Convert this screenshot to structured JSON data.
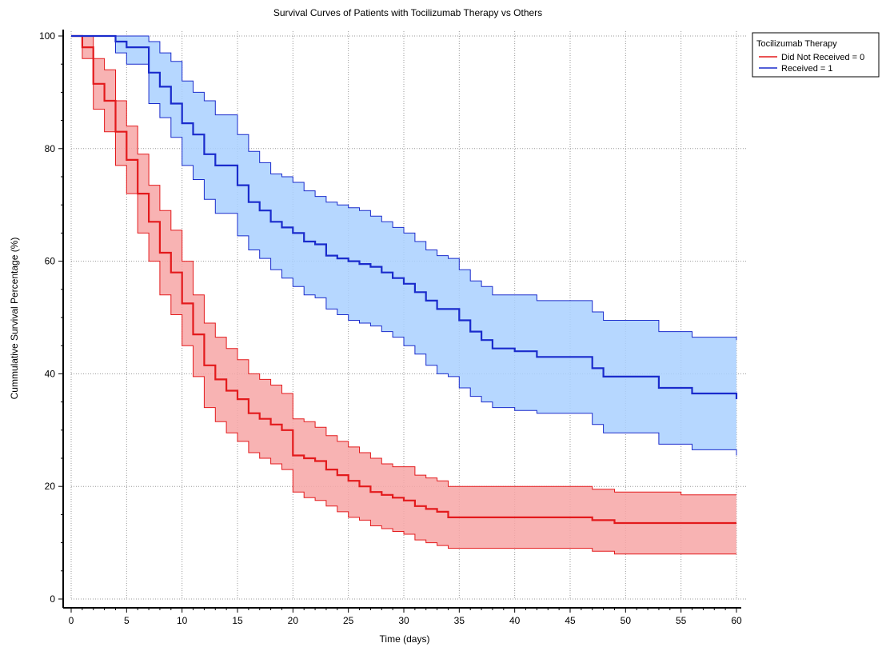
{
  "chart_data": {
    "type": "line",
    "title": "Survival Curves of Patients with Tocilizumab Therapy vs Others",
    "xlabel": "Time (days)",
    "ylabel": "Cummulative Survival Percentage (%)",
    "xlim": [
      0,
      60
    ],
    "ylim": [
      0,
      100
    ],
    "xticks": [
      0,
      5,
      10,
      15,
      20,
      25,
      30,
      35,
      40,
      45,
      50,
      55,
      60
    ],
    "yticks": [
      0,
      20,
      40,
      60,
      80,
      100
    ],
    "grid": true,
    "legend": {
      "title": "Tocilizumab Therapy",
      "placement": "top-right"
    },
    "series": [
      {
        "name": "Did Not Received = 0",
        "color": "#e31a1c",
        "band_color": "#f7a6a6",
        "x": [
          0,
          1,
          2,
          3,
          4,
          5,
          6,
          7,
          8,
          9,
          10,
          11,
          12,
          13,
          14,
          15,
          16,
          17,
          18,
          19,
          20,
          21,
          22,
          23,
          24,
          25,
          26,
          27,
          28,
          29,
          30,
          31,
          32,
          33,
          34,
          35,
          40,
          45,
          47,
          49,
          55,
          60
        ],
        "y": [
          100,
          98,
          91.5,
          88.5,
          83,
          78,
          72,
          67,
          61.5,
          58,
          52.5,
          47,
          41.5,
          39,
          37,
          35.5,
          33,
          32,
          31,
          30,
          25.5,
          25,
          24.5,
          23,
          22,
          21,
          20,
          19,
          18.5,
          18,
          17.5,
          16.5,
          16,
          15.5,
          14.5,
          14.5,
          14.5,
          14.5,
          14,
          13.5,
          13.5,
          13.5
        ],
        "lower": [
          100,
          96,
          87,
          83,
          77,
          72,
          65,
          60,
          54,
          50.5,
          45,
          39.5,
          34,
          31.5,
          29.5,
          28,
          26,
          25,
          24,
          23,
          19,
          18,
          17.5,
          16.5,
          15.5,
          14.5,
          14,
          13,
          12.5,
          12,
          11.5,
          10.5,
          10,
          9.5,
          9,
          9,
          9,
          9,
          8.5,
          8,
          8,
          8
        ],
        "upper": [
          100,
          100,
          96,
          94,
          88.5,
          84,
          79,
          73.5,
          69,
          65.5,
          60,
          54,
          49,
          46.5,
          44.5,
          42.5,
          40,
          39,
          38,
          36.5,
          32,
          31.5,
          30.5,
          29,
          28,
          27,
          26,
          25,
          24,
          23.5,
          23.5,
          22,
          21.5,
          21,
          20,
          20,
          20,
          20,
          19.5,
          19,
          18.5,
          18.5
        ]
      },
      {
        "name": "Received = 1",
        "color": "#1a2bcc",
        "band_color": "#a9d0ff",
        "x": [
          0,
          4,
          5,
          7,
          8,
          9,
          10,
          11,
          12,
          13,
          15,
          16,
          17,
          18,
          19,
          20,
          21,
          22,
          23,
          24,
          25,
          26,
          27,
          28,
          29,
          30,
          31,
          32,
          33,
          34,
          35,
          36,
          37,
          38,
          40,
          42,
          45,
          47,
          48,
          50,
          53,
          56,
          60
        ],
        "y": [
          100,
          99,
          98,
          93.5,
          91,
          88,
          84.5,
          82.5,
          79,
          77,
          73.5,
          70.5,
          69,
          67,
          66,
          65,
          63.5,
          63,
          61,
          60.5,
          60,
          59.5,
          59,
          58,
          57,
          56,
          54.5,
          53,
          51.5,
          51.5,
          49.5,
          47.5,
          46,
          44.5,
          44,
          43,
          43,
          41,
          39.5,
          39.5,
          37.5,
          36.5,
          35.5
        ],
        "lower": [
          100,
          97,
          95,
          88,
          85.5,
          82,
          77,
          74.5,
          71,
          68.5,
          64.5,
          62,
          60.5,
          58.5,
          57,
          55.5,
          54,
          53.5,
          51.5,
          50.5,
          49.5,
          49,
          48.5,
          47.5,
          46.5,
          45,
          43.5,
          41.5,
          40,
          39.5,
          37.5,
          36,
          35,
          34,
          33.5,
          33,
          33,
          31,
          29.5,
          29.5,
          27.5,
          26.5,
          25.5
        ],
        "upper": [
          100,
          100,
          100,
          99,
          97,
          95.5,
          92,
          90,
          88.5,
          86,
          82.5,
          79.5,
          77.5,
          75.5,
          75,
          74,
          72.5,
          71.5,
          70.5,
          70,
          69.5,
          69,
          68,
          67,
          66,
          65,
          63.5,
          62,
          61,
          60.5,
          58.5,
          56.5,
          55.5,
          54,
          54,
          53,
          53,
          51,
          49.5,
          49.5,
          47.5,
          46.5,
          46
        ]
      }
    ]
  }
}
